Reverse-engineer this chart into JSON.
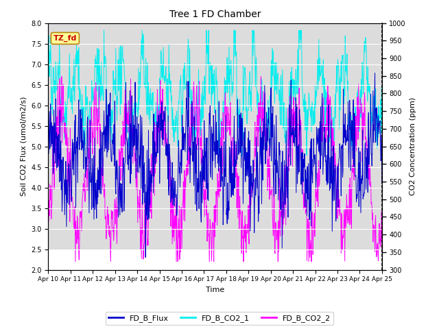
{
  "title": "Tree 1 FD Chamber",
  "xlabel": "Time",
  "ylabel_left": "Soil CO2 Flux (umol/m2/s)",
  "ylabel_right": "CO2 Concentration (ppm)",
  "ylim_left": [
    2.0,
    8.0
  ],
  "ylim_right": [
    300,
    1000
  ],
  "yticks_left": [
    2.0,
    2.5,
    3.0,
    3.5,
    4.0,
    4.5,
    5.0,
    5.5,
    6.0,
    6.5,
    7.0,
    7.5,
    8.0
  ],
  "yticks_right": [
    300,
    350,
    400,
    450,
    500,
    550,
    600,
    650,
    700,
    750,
    800,
    850,
    900,
    950,
    1000
  ],
  "xtick_labels": [
    "Apr 10",
    "Apr 11",
    "Apr 12",
    "Apr 13",
    "Apr 14",
    "Apr 15",
    "Apr 16",
    "Apr 17",
    "Apr 18",
    "Apr 19",
    "Apr 20",
    "Apr 21",
    "Apr 22",
    "Apr 23",
    "Apr 24",
    "Apr 25"
  ],
  "color_flux": "#0000CC",
  "color_co2_1": "#00EEEE",
  "color_co2_2": "#FF00FF",
  "legend_labels": [
    "FD_B_Flux",
    "FD_B_CO2_1",
    "FD_B_CO2_2"
  ],
  "annotation_text": "TZ_fd",
  "annotation_bg": "#FFFF99",
  "annotation_fg": "#CC0000",
  "shade_color": "#DCDCDC",
  "n_points": 900,
  "seed": 42
}
